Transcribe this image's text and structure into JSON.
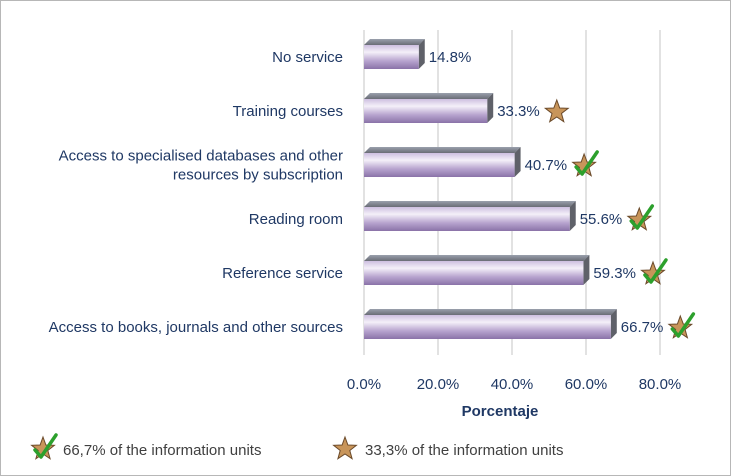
{
  "chart_data": {
    "type": "bar",
    "orientation": "horizontal",
    "categories": [
      "No service",
      "Training courses",
      "Access to specialised databases and other resources by subscription",
      "Reading room",
      "Reference service",
      "Access to books, journals and other sources"
    ],
    "category_lines": [
      [
        "No service"
      ],
      [
        "Training courses"
      ],
      [
        "Access to specialised databases and other",
        "resources by subscription"
      ],
      [
        "Reading room"
      ],
      [
        "Reference service"
      ],
      [
        "Access to books, journals and other sources"
      ]
    ],
    "values": [
      14.8,
      33.3,
      40.7,
      55.6,
      59.3,
      66.7
    ],
    "value_labels": [
      "14.8%",
      "33.3%",
      "40.7%",
      "55.6%",
      "59.3%",
      "66.7%"
    ],
    "markers": [
      "none",
      "star",
      "star-check",
      "star-check",
      "star-check",
      "star-check"
    ],
    "xlabel": "Porcentaje",
    "xlim": [
      0,
      80
    ],
    "xticks": [
      0,
      20,
      40,
      60,
      80
    ],
    "xtick_labels": [
      "0.0%",
      "20.0%",
      "40.0%",
      "60.0%",
      "80.0%"
    ],
    "grid": "vertical",
    "legend_position": "bottom",
    "legend": [
      {
        "marker": "star-check",
        "label": "66,7% of the information units"
      },
      {
        "marker": "star",
        "label": "33,3% of the information units"
      }
    ],
    "colors": {
      "bar_top": "#e6deef",
      "bar_mid": "#b9a6d0",
      "bar_bottom": "#8a72a8",
      "bar_face": "#6d6f78",
      "star_fill": "#c8955a",
      "check": "#2ca02c",
      "text": "#1f3864"
    }
  }
}
